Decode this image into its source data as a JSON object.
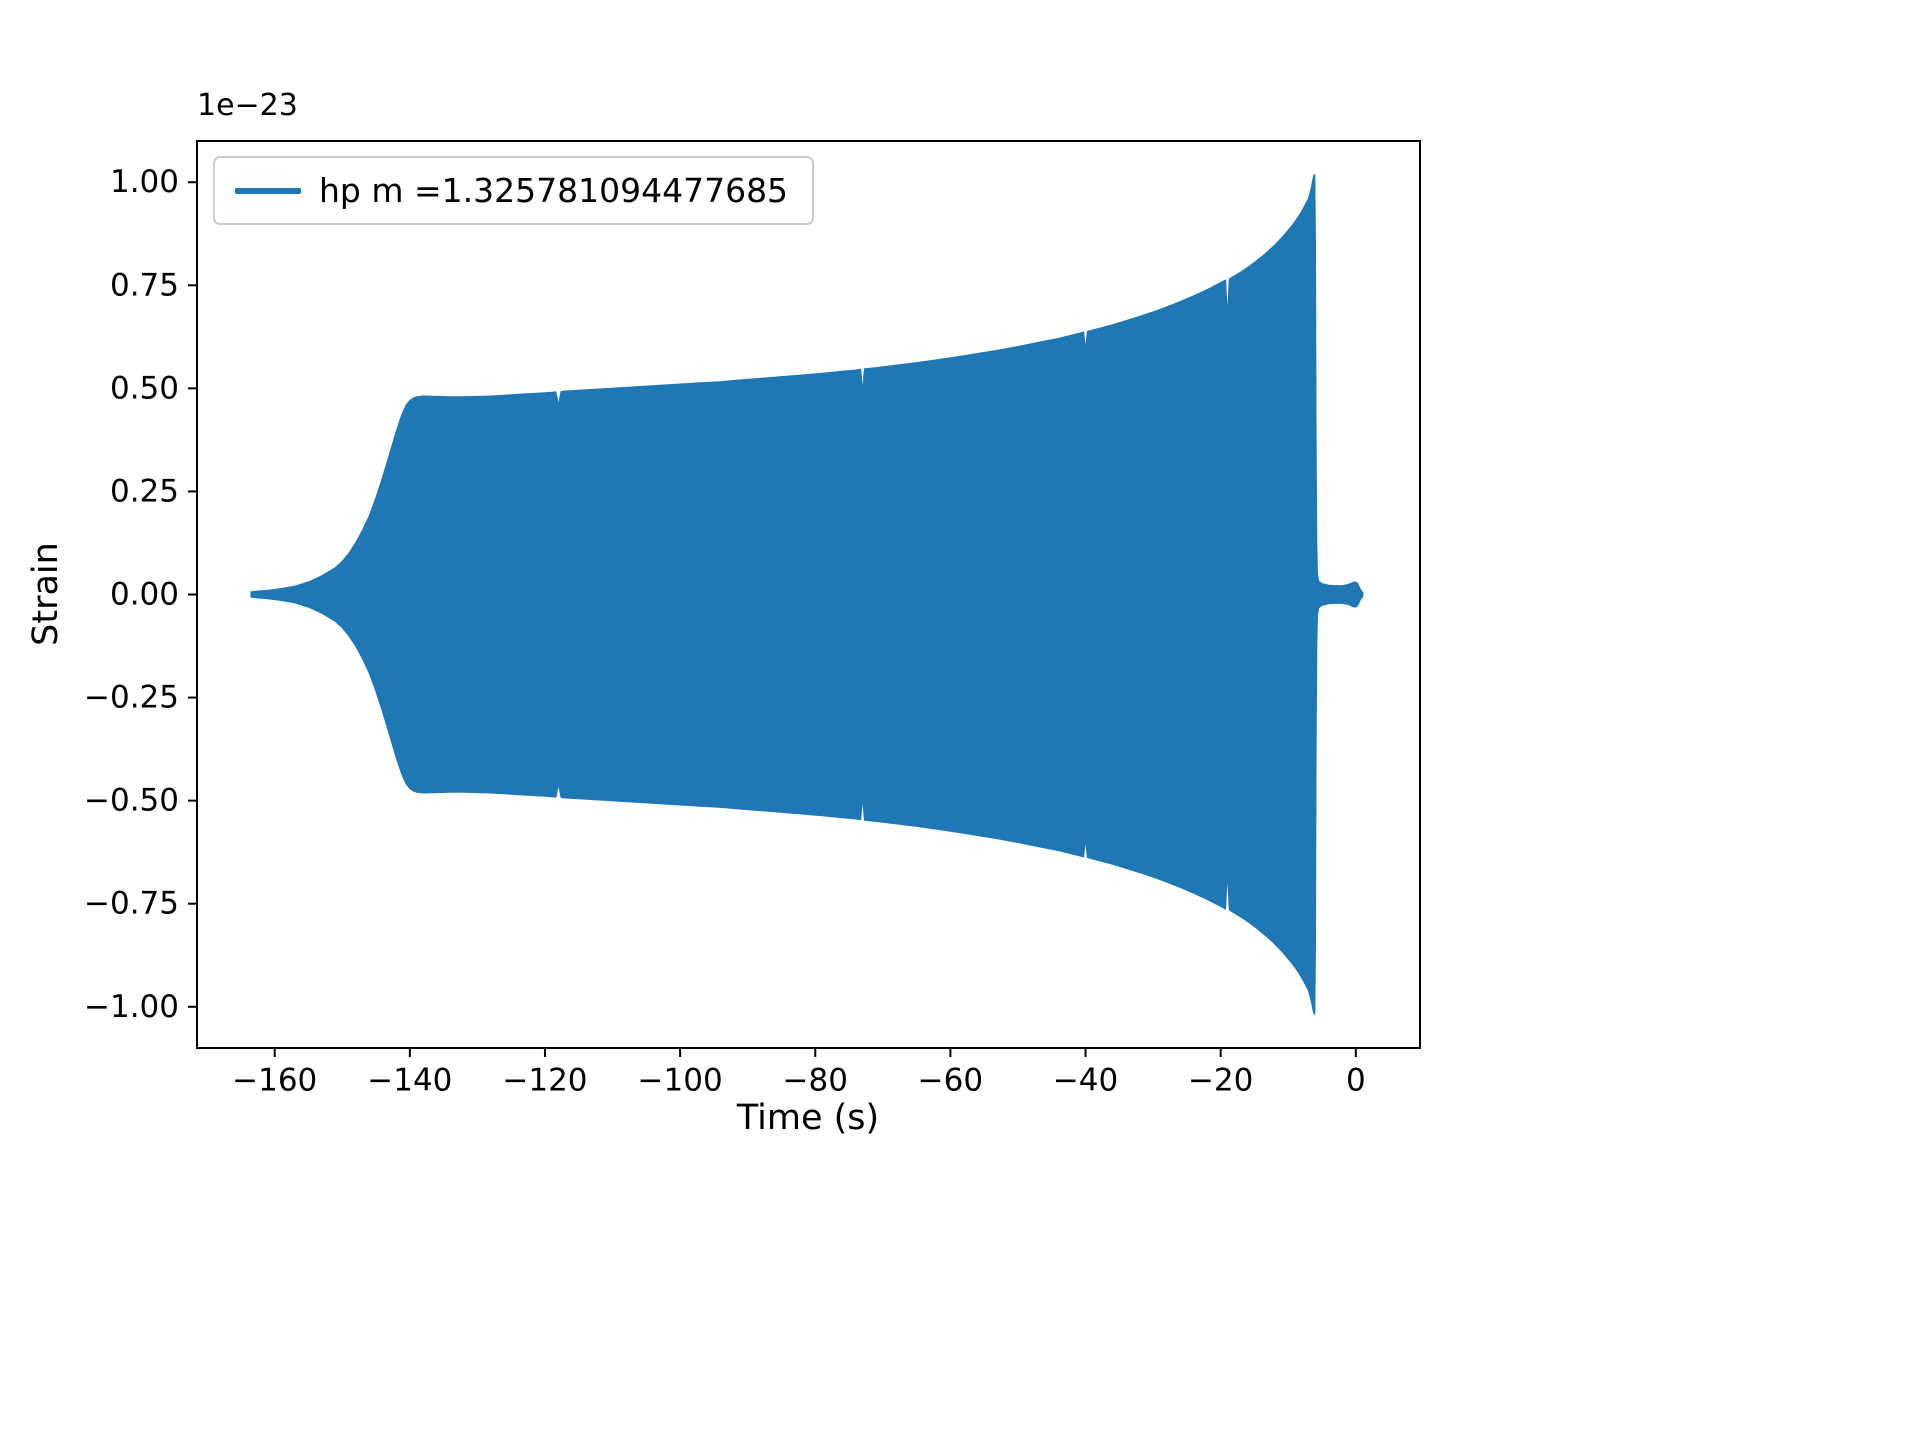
{
  "figure": {
    "background": "#ffffff",
    "accent": "#1f77b4"
  },
  "chart_data": {
    "type": "line",
    "title": "",
    "xlabel": "Time (s)",
    "ylabel": "Strain",
    "offset_text": "1e−23",
    "grid": false,
    "xlim": [
      -171.5,
      9.5
    ],
    "ylim": [
      -1.1,
      1.1
    ],
    "xticks": [
      -160,
      -140,
      -120,
      -100,
      -80,
      -60,
      -40,
      -20,
      0
    ],
    "xtick_labels": [
      "−160",
      "−140",
      "−120",
      "−100",
      "−80",
      "−60",
      "−40",
      "−20",
      "0"
    ],
    "yticks": [
      -1.0,
      -0.75,
      -0.5,
      -0.25,
      0.0,
      0.25,
      0.5,
      0.75,
      1.0
    ],
    "ytick_labels": [
      "−1.00",
      "−0.75",
      "−0.50",
      "−0.25",
      "0.00",
      "0.25",
      "0.50",
      "0.75",
      "1.00"
    ],
    "legend": {
      "position": "upper left",
      "entries": [
        {
          "label": "hp m =1.325781094477685",
          "color": "#1f77b4"
        }
      ]
    },
    "series": [
      {
        "name": "hp",
        "color": "#1f77b4",
        "waveform": "symmetric oscillatory chirp rendered as filled ±envelope, amplitude units 1e−23",
        "envelope": [
          [
            -163.5,
            0.006
          ],
          [
            -162.5,
            0.008
          ],
          [
            -161,
            0.01
          ],
          [
            -159,
            0.014
          ],
          [
            -157,
            0.02
          ],
          [
            -155,
            0.03
          ],
          [
            -153,
            0.045
          ],
          [
            -151,
            0.065
          ],
          [
            -150,
            0.08
          ],
          [
            -149,
            0.1
          ],
          [
            -148,
            0.125
          ],
          [
            -147,
            0.155
          ],
          [
            -146,
            0.19
          ],
          [
            -145,
            0.235
          ],
          [
            -144,
            0.285
          ],
          [
            -143,
            0.34
          ],
          [
            -142,
            0.395
          ],
          [
            -141.5,
            0.42
          ],
          [
            -141,
            0.443
          ],
          [
            -140.5,
            0.46
          ],
          [
            -140,
            0.47
          ],
          [
            -139.5,
            0.476
          ],
          [
            -139,
            0.479
          ],
          [
            -138,
            0.481
          ],
          [
            -136,
            0.48
          ],
          [
            -134,
            0.479
          ],
          [
            -132,
            0.479
          ],
          [
            -130,
            0.48
          ],
          [
            -128,
            0.481
          ],
          [
            -126,
            0.483
          ],
          [
            -124,
            0.485
          ],
          [
            -122,
            0.487
          ],
          [
            -120,
            0.489
          ],
          [
            -119,
            0.49
          ],
          [
            -118.4,
            0.491
          ],
          [
            -118,
            0.458
          ],
          [
            -117.6,
            0.492
          ],
          [
            -117,
            0.493
          ],
          [
            -115,
            0.495
          ],
          [
            -113,
            0.497
          ],
          [
            -111,
            0.499
          ],
          [
            -109,
            0.501
          ],
          [
            -106,
            0.504
          ],
          [
            -103,
            0.507
          ],
          [
            -100,
            0.51
          ],
          [
            -97,
            0.513
          ],
          [
            -94,
            0.516
          ],
          [
            -91,
            0.52
          ],
          [
            -88,
            0.524
          ],
          [
            -85,
            0.528
          ],
          [
            -82,
            0.532
          ],
          [
            -79,
            0.536
          ],
          [
            -76,
            0.541
          ],
          [
            -74,
            0.544
          ],
          [
            -73.3,
            0.546
          ],
          [
            -73,
            0.488
          ],
          [
            -72.7,
            0.547
          ],
          [
            -71,
            0.55
          ],
          [
            -68,
            0.556
          ],
          [
            -65,
            0.562
          ],
          [
            -62,
            0.569
          ],
          [
            -59,
            0.576
          ],
          [
            -56,
            0.584
          ],
          [
            -53,
            0.592
          ],
          [
            -50,
            0.601
          ],
          [
            -47,
            0.611
          ],
          [
            -44,
            0.621
          ],
          [
            -41,
            0.633
          ],
          [
            -40.3,
            0.636
          ],
          [
            -40,
            0.59
          ],
          [
            -39.7,
            0.638
          ],
          [
            -38,
            0.645
          ],
          [
            -36,
            0.654
          ],
          [
            -34,
            0.664
          ],
          [
            -32,
            0.674
          ],
          [
            -30,
            0.685
          ],
          [
            -28,
            0.697
          ],
          [
            -26,
            0.71
          ],
          [
            -24,
            0.724
          ],
          [
            -22,
            0.739
          ],
          [
            -20,
            0.756
          ],
          [
            -19.3,
            0.762
          ],
          [
            -19,
            0.668
          ],
          [
            -18.7,
            0.765
          ],
          [
            -17,
            0.782
          ],
          [
            -16,
            0.793
          ],
          [
            -15,
            0.805
          ],
          [
            -14,
            0.818
          ],
          [
            -13,
            0.832
          ],
          [
            -12,
            0.847
          ],
          [
            -11,
            0.864
          ],
          [
            -10,
            0.883
          ],
          [
            -9.5,
            0.893
          ],
          [
            -9,
            0.904
          ],
          [
            -8.5,
            0.916
          ],
          [
            -8,
            0.929
          ],
          [
            -7.5,
            0.944
          ],
          [
            -7,
            0.96
          ],
          [
            -6.8,
            0.972
          ],
          [
            -6.6,
            0.984
          ],
          [
            -6.45,
            0.995
          ],
          [
            -6.3,
            1.008
          ],
          [
            -6.2,
            1.015
          ],
          [
            -6.1,
            1.018
          ],
          [
            -6.0,
            0.85
          ],
          [
            -5.9,
            0.38
          ],
          [
            -5.8,
            0.12
          ],
          [
            -5.7,
            0.05
          ],
          [
            -5.5,
            0.032
          ],
          [
            -5.0,
            0.026
          ],
          [
            -4.0,
            0.022
          ],
          [
            -3.0,
            0.021
          ],
          [
            -2.0,
            0.021
          ],
          [
            -1.3,
            0.023
          ],
          [
            -0.8,
            0.026
          ],
          [
            -0.4,
            0.029
          ],
          [
            0.0,
            0.03
          ],
          [
            0.25,
            0.026
          ],
          [
            0.5,
            0.018
          ],
          [
            0.75,
            0.01
          ],
          [
            1.0,
            0.005
          ]
        ]
      }
    ]
  }
}
